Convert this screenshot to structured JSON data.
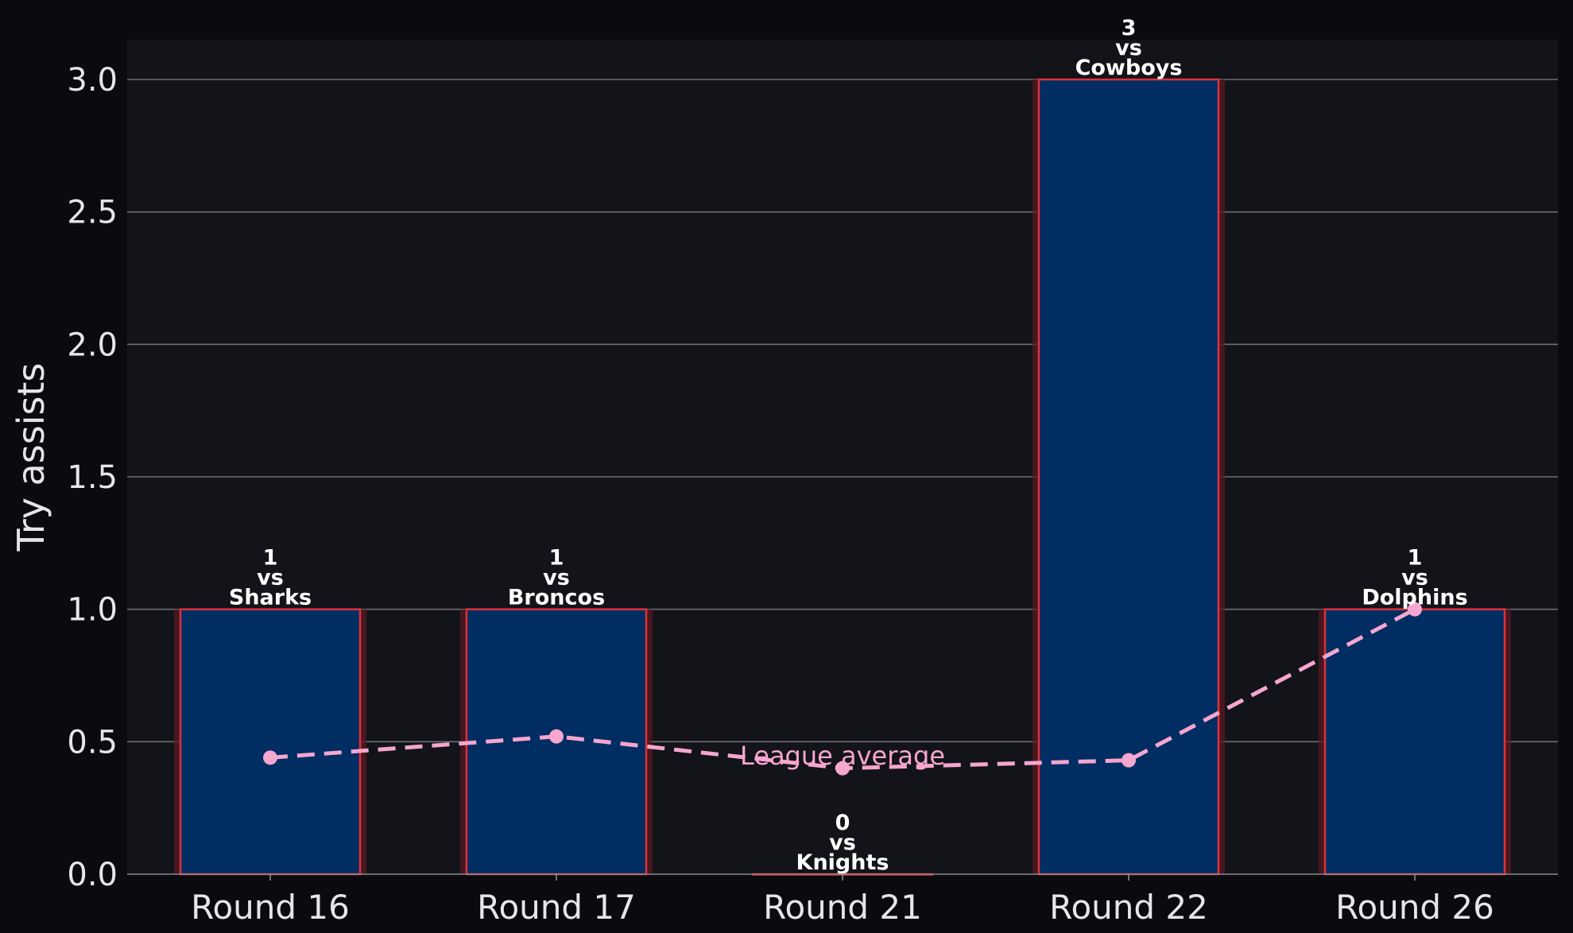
{
  "chart_data": {
    "type": "bar",
    "title": "",
    "xlabel": "",
    "ylabel": "Try assists",
    "categories": [
      "Round 16",
      "Round 17",
      "Round 21",
      "Round 22",
      "Round 26"
    ],
    "series": [
      {
        "type": "bar",
        "values": [
          1,
          1,
          0,
          3,
          1
        ],
        "bar_labels": [
          [
            "1",
            "vs",
            "Sharks"
          ],
          [
            "1",
            "vs",
            "Broncos"
          ],
          [
            "0",
            "vs",
            "Knights"
          ],
          [
            "3",
            "vs",
            "Cowboys"
          ],
          [
            "1",
            "vs",
            "Dolphins"
          ]
        ]
      },
      {
        "type": "line",
        "style": "dashed",
        "values": [
          0.44,
          0.52,
          0.4,
          0.43,
          1.0
        ]
      }
    ],
    "annotations": [
      {
        "text": "League average",
        "x": "Round 21",
        "y": 0.45
      }
    ],
    "ylim": [
      0,
      3.15
    ],
    "yticks": [
      "0.0",
      "0.5",
      "1.0",
      "1.5",
      "2.0",
      "2.5",
      "3.0"
    ],
    "grid": "horizontal",
    "colors": {
      "page_bg": "#0b0b0f",
      "plot_bg": "#13131a",
      "bar_fill": "#002d62",
      "bar_edge": "#e0303a",
      "bar_glow": "#5a1a22",
      "line": "#f6a6cf",
      "grid": "#6e6e72",
      "text": "#e6e6ea"
    }
  }
}
